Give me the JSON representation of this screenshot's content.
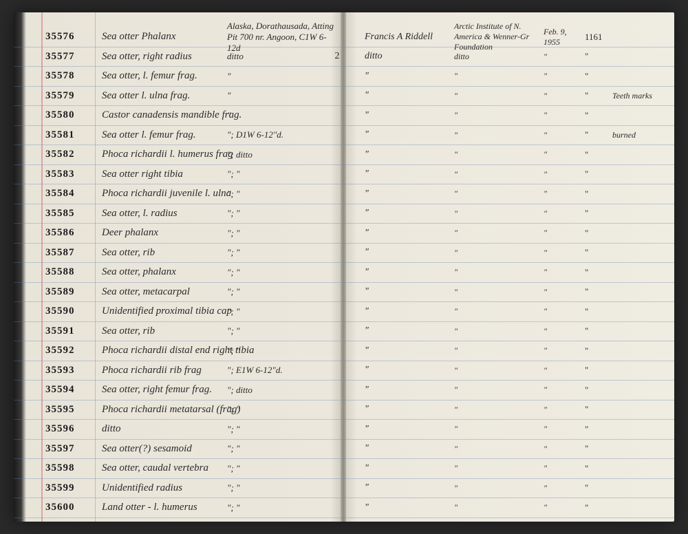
{
  "rows": [
    {
      "id": "35576",
      "desc": "Sea otter Phalanx",
      "loc": "Alaska, Dorathausada, Atting Pit 700 nr. Angoon, C1W 6-12d",
      "qty": "",
      "collector": "Francis A Riddell",
      "inst": "Arctic Institute of N. America & Wenner-Gr Foundation",
      "date": "Feb. 9, 1955",
      "num": "1161",
      "note": ""
    },
    {
      "id": "35577",
      "desc": "Sea otter, right radius",
      "loc": "ditto",
      "qty": "2",
      "collector": "ditto",
      "inst": "ditto",
      "date": "\"",
      "num": "\"",
      "note": ""
    },
    {
      "id": "35578",
      "desc": "Sea otter, l. femur frag.",
      "loc": "\"",
      "qty": "",
      "collector": "\"",
      "inst": "\"",
      "date": "\"",
      "num": "\"",
      "note": ""
    },
    {
      "id": "35579",
      "desc": "Sea otter l. ulna frag.",
      "loc": "\"",
      "qty": "",
      "collector": "\"",
      "inst": "\"",
      "date": "\"",
      "num": "\"",
      "note": "Teeth marks"
    },
    {
      "id": "35580",
      "desc": "Castor canadensis mandible frag.",
      "loc": "\"",
      "qty": "",
      "collector": "\"",
      "inst": "\"",
      "date": "\"",
      "num": "\"",
      "note": ""
    },
    {
      "id": "35581",
      "desc": "Sea otter l. femur frag.",
      "loc": "\"; D1W   6-12\"d.",
      "qty": "",
      "collector": "\"",
      "inst": "\"",
      "date": "\"",
      "num": "\"",
      "note": "burned"
    },
    {
      "id": "35582",
      "desc": "Phoca richardii l. humerus frag",
      "loc": "\"; ditto",
      "qty": "",
      "collector": "\"",
      "inst": "\"",
      "date": "\"",
      "num": "\"",
      "note": ""
    },
    {
      "id": "35583",
      "desc": "Sea otter right tibia",
      "loc": "\"; \"",
      "qty": "",
      "collector": "\"",
      "inst": "\"",
      "date": "\"",
      "num": "\"",
      "note": ""
    },
    {
      "id": "35584",
      "desc": "Phoca richardii juvenile l. ulna",
      "loc": "\"; \"",
      "qty": "",
      "collector": "\"",
      "inst": "\"",
      "date": "\"",
      "num": "\"",
      "note": ""
    },
    {
      "id": "35585",
      "desc": "Sea otter, l. radius",
      "loc": "\"; \"",
      "qty": "",
      "collector": "\"",
      "inst": "\"",
      "date": "\"",
      "num": "\"",
      "note": ""
    },
    {
      "id": "35586",
      "desc": "Deer phalanx",
      "loc": "\"; \"",
      "qty": "",
      "collector": "\"",
      "inst": "\"",
      "date": "\"",
      "num": "\"",
      "note": ""
    },
    {
      "id": "35587",
      "desc": "Sea otter, rib",
      "loc": "\"; \"",
      "qty": "",
      "collector": "\"",
      "inst": "\"",
      "date": "\"",
      "num": "\"",
      "note": ""
    },
    {
      "id": "35588",
      "desc": "Sea otter, phalanx",
      "loc": "\"; \"",
      "qty": "",
      "collector": "\"",
      "inst": "\"",
      "date": "\"",
      "num": "\"",
      "note": ""
    },
    {
      "id": "35589",
      "desc": "Sea otter, metacarpal",
      "loc": "\"; \"",
      "qty": "",
      "collector": "\"",
      "inst": "\"",
      "date": "\"",
      "num": "\"",
      "note": ""
    },
    {
      "id": "35590",
      "desc": "Unidentified proximal tibia cap",
      "loc": "\"; \"",
      "qty": "",
      "collector": "\"",
      "inst": "\"",
      "date": "\"",
      "num": "\"",
      "note": ""
    },
    {
      "id": "35591",
      "desc": "Sea otter, rib",
      "loc": "\"; \"",
      "qty": "",
      "collector": "\"",
      "inst": "\"",
      "date": "\"",
      "num": "\"",
      "note": ""
    },
    {
      "id": "35592",
      "desc": "Phoca richardii distal end right tibia",
      "loc": "\"; \"",
      "qty": "",
      "collector": "\"",
      "inst": "\"",
      "date": "\"",
      "num": "\"",
      "note": ""
    },
    {
      "id": "35593",
      "desc": "Phoca richardii rib frag",
      "loc": "\"; E1W   6-12\"d.",
      "qty": "",
      "collector": "\"",
      "inst": "\"",
      "date": "\"",
      "num": "\"",
      "note": ""
    },
    {
      "id": "35594",
      "desc": "Sea otter, right femur frag.",
      "loc": "\"; ditto",
      "qty": "",
      "collector": "\"",
      "inst": "\"",
      "date": "\"",
      "num": "\"",
      "note": ""
    },
    {
      "id": "35595",
      "desc": "Phoca richardii metatarsal (frag)",
      "loc": "\"; \"",
      "qty": "",
      "collector": "\"",
      "inst": "\"",
      "date": "\"",
      "num": "\"",
      "note": ""
    },
    {
      "id": "35596",
      "desc": "ditto",
      "loc": "\"; \"",
      "qty": "",
      "collector": "\"",
      "inst": "\"",
      "date": "\"",
      "num": "\"",
      "note": ""
    },
    {
      "id": "35597",
      "desc": "Sea otter(?) sesamoid",
      "loc": "\"; \"",
      "qty": "",
      "collector": "\"",
      "inst": "\"",
      "date": "\"",
      "num": "\"",
      "note": ""
    },
    {
      "id": "35598",
      "desc": "Sea otter, caudal vertebra",
      "loc": "\"; \"",
      "qty": "",
      "collector": "\"",
      "inst": "\"",
      "date": "\"",
      "num": "\"",
      "note": ""
    },
    {
      "id": "35599",
      "desc": "Unidentified radius",
      "loc": "\"; \"",
      "qty": "",
      "collector": "\"",
      "inst": "\"",
      "date": "\"",
      "num": "\"",
      "note": ""
    },
    {
      "id": "35600",
      "desc": "Land otter - l. humerus",
      "loc": "\"; \"",
      "qty": "",
      "collector": "\"",
      "inst": "\"",
      "date": "\"",
      "num": "\"",
      "note": ""
    }
  ]
}
